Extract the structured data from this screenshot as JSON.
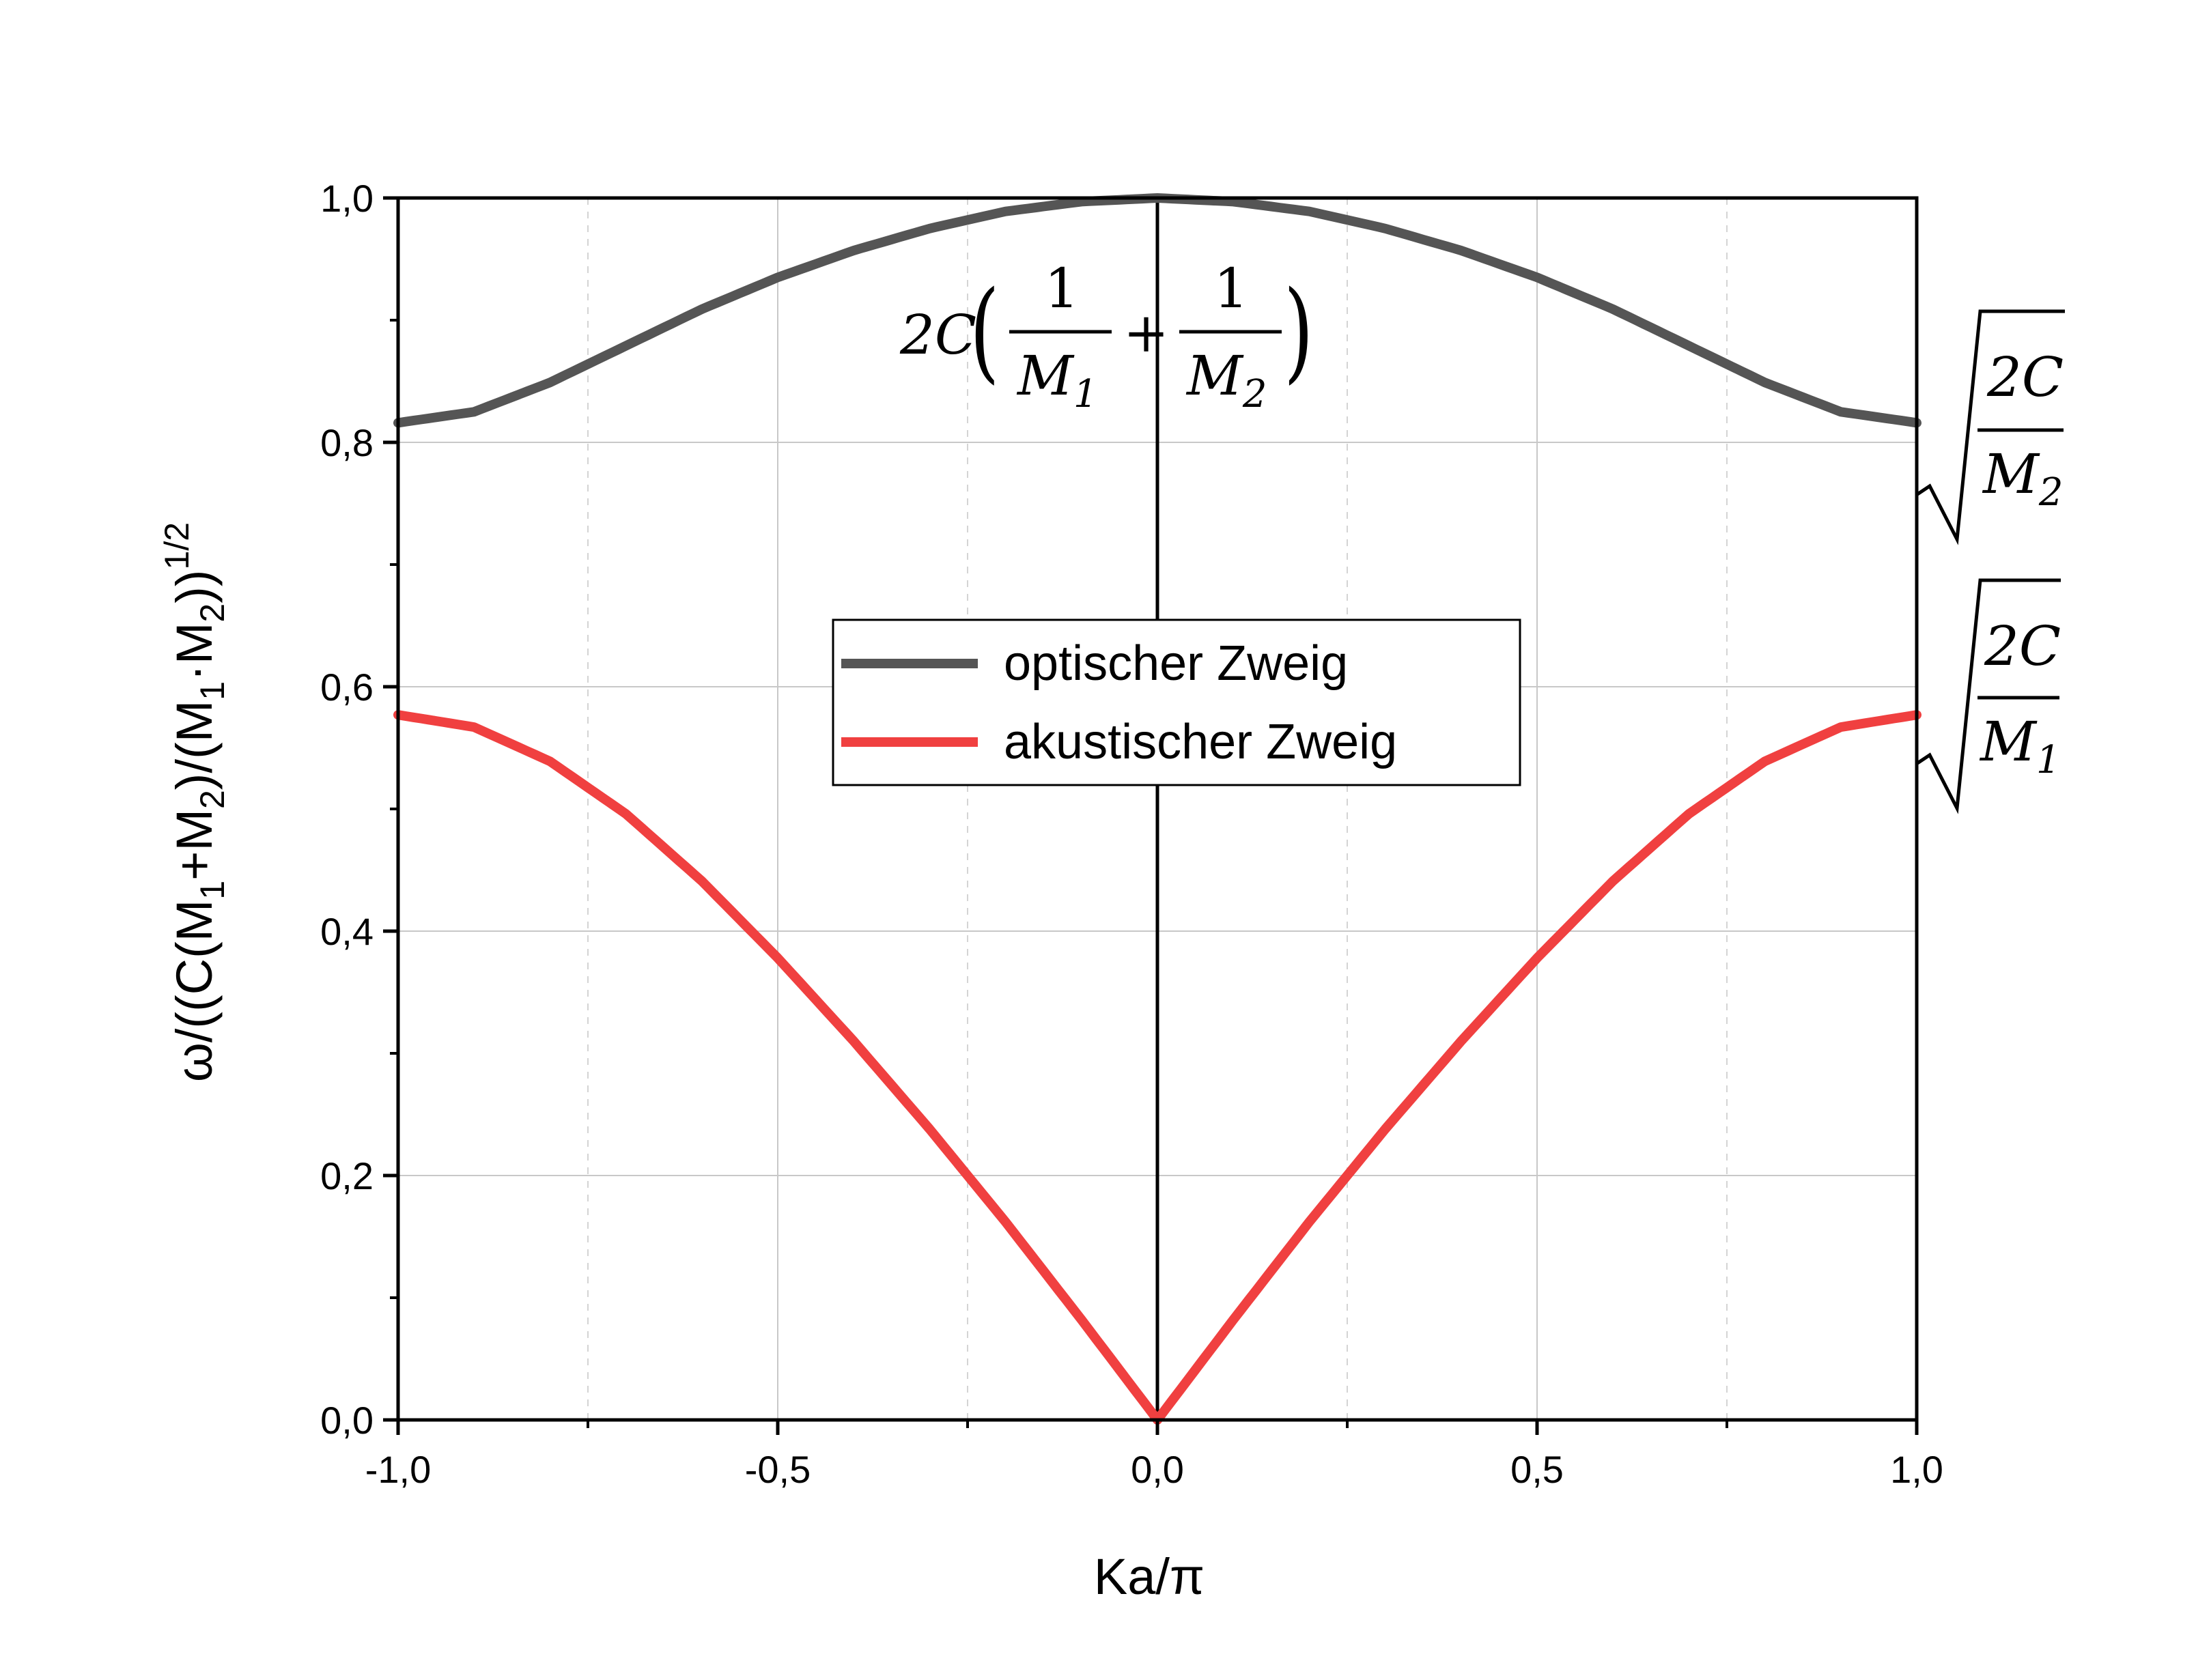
{
  "chart_data": {
    "type": "line",
    "xlabel": "Ka/π",
    "ylabel": {
      "prefix": "ω/((C(M",
      "sub1": "1",
      "mid1": "+M",
      "sub2": "2",
      "mid2": ")/(M",
      "sub3": "1",
      "mid3": "·M",
      "sub4": "2",
      "suffix": "))",
      "sup": "1/2"
    },
    "xlim": [
      -1.0,
      1.0
    ],
    "ylim": [
      0.0,
      1.0
    ],
    "x_ticks": [
      -1.0,
      -0.5,
      0.0,
      0.5,
      1.0
    ],
    "x_tick_labels": [
      "-1,0",
      "-0,5",
      "0,0",
      "0,5",
      "1,0"
    ],
    "y_ticks": [
      0.0,
      0.2,
      0.4,
      0.6,
      0.8,
      1.0
    ],
    "y_tick_labels": [
      "0,0",
      "0,2",
      "0,4",
      "0,6",
      "0,8",
      "1,0"
    ],
    "grid": true,
    "legend_position": "center",
    "series": [
      {
        "name": "optischer Zweig",
        "color": "#555555",
        "x": [
          -1.0,
          -0.9,
          -0.8,
          -0.7,
          -0.6,
          -0.5,
          -0.4,
          -0.3,
          -0.2,
          -0.1,
          0.0,
          0.1,
          0.2,
          0.3,
          0.4,
          0.5,
          0.6,
          0.7,
          0.8,
          0.9,
          1.0
        ],
        "y": [
          0.816,
          0.825,
          0.849,
          0.879,
          0.909,
          0.935,
          0.957,
          0.975,
          0.989,
          0.997,
          1.0,
          0.997,
          0.989,
          0.975,
          0.957,
          0.935,
          0.909,
          0.879,
          0.849,
          0.825,
          0.816
        ]
      },
      {
        "name": "akustischer Zweig",
        "color": "#f04040",
        "x": [
          -1.0,
          -0.9,
          -0.8,
          -0.7,
          -0.6,
          -0.5,
          -0.4,
          -0.3,
          -0.2,
          -0.1,
          0.0,
          0.1,
          0.2,
          0.3,
          0.4,
          0.5,
          0.6,
          0.7,
          0.8,
          0.9,
          1.0
        ],
        "y": [
          0.577,
          0.567,
          0.539,
          0.496,
          0.441,
          0.378,
          0.31,
          0.238,
          0.162,
          0.082,
          0.0,
          0.082,
          0.162,
          0.238,
          0.31,
          0.378,
          0.441,
          0.496,
          0.539,
          0.567,
          0.577
        ]
      }
    ],
    "annotations": {
      "top_formula": {
        "coef": "2C",
        "num1": "1",
        "den1": "M",
        "den1_sub": "1",
        "plus": "+",
        "num2": "1",
        "den2": "M",
        "den2_sub": "2"
      },
      "right_formula_upper": {
        "num": "2C",
        "den": "M",
        "den_sub": "2"
      },
      "right_formula_lower": {
        "num": "2C",
        "den": "M",
        "den_sub": "1"
      }
    }
  }
}
